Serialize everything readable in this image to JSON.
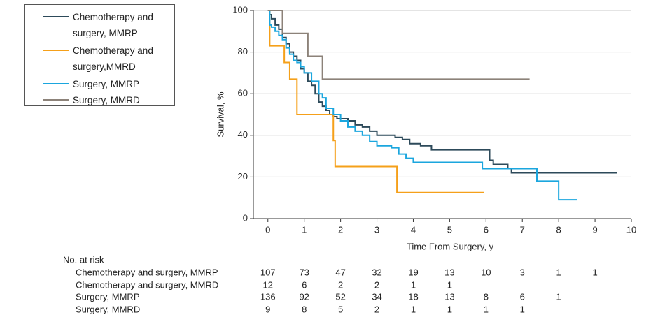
{
  "chart_data": {
    "type": "line",
    "step": true,
    "xlabel": "Time From Surgery, y",
    "ylabel": "Survival, %",
    "xlim": [
      -0.4,
      10
    ],
    "xticks": [
      0,
      1,
      2,
      3,
      4,
      5,
      6,
      7,
      8,
      9,
      10
    ],
    "ylim": [
      0,
      100
    ],
    "yticks": [
      0,
      20,
      40,
      60,
      80,
      100
    ],
    "grid": true,
    "series": [
      {
        "name": "Chemotherapy and surgery, MMRP",
        "color": "#2d4a5a",
        "x": [
          0,
          0.05,
          0.1,
          0.2,
          0.3,
          0.4,
          0.5,
          0.6,
          0.7,
          0.8,
          0.9,
          1.0,
          1.1,
          1.2,
          1.3,
          1.4,
          1.5,
          1.6,
          1.7,
          1.8,
          1.9,
          2.0,
          2.2,
          2.4,
          2.6,
          2.8,
          3.0,
          3.2,
          3.5,
          3.7,
          3.9,
          4.2,
          4.5,
          5.0,
          6.1,
          6.2,
          6.6,
          6.7,
          7.0,
          9.6
        ],
        "values": [
          100,
          98,
          96,
          93,
          91,
          87,
          84,
          80,
          78,
          76,
          72,
          70,
          66,
          64,
          60,
          56,
          54,
          52,
          50,
          49,
          48,
          48,
          47,
          45,
          44,
          42,
          40,
          40,
          39,
          38,
          36,
          35,
          33,
          33,
          28,
          26,
          24,
          22,
          22,
          22
        ]
      },
      {
        "name": "Chemotherapy and surgery,MMRD",
        "color": "#f5a01a",
        "x": [
          0,
          0.05,
          0.45,
          0.6,
          0.8,
          1.8,
          1.85,
          3.55,
          5.95
        ],
        "values": [
          100,
          83,
          75,
          67,
          50,
          37.5,
          25,
          12.5,
          12.5
        ]
      },
      {
        "name": "Surgery, MMRP",
        "color": "#1ba6de",
        "x": [
          0,
          0.05,
          0.1,
          0.2,
          0.3,
          0.4,
          0.5,
          0.6,
          0.7,
          0.8,
          0.9,
          1.0,
          1.2,
          1.4,
          1.5,
          1.6,
          1.8,
          2.0,
          2.2,
          2.4,
          2.6,
          2.8,
          3.0,
          3.4,
          3.6,
          3.8,
          4.0,
          4.5,
          5.0,
          5.9,
          7.4,
          7.8,
          8.0,
          8.5
        ],
        "values": [
          100,
          93,
          92,
          90,
          88,
          86,
          82,
          79,
          76,
          75,
          73,
          70,
          66,
          60,
          58,
          53,
          50,
          47,
          44,
          42,
          40,
          37,
          35,
          34,
          31,
          29,
          27,
          27,
          27,
          24,
          18,
          18,
          9,
          9
        ]
      },
      {
        "name": "Surgery, MMRD",
        "color": "#8c8279",
        "x": [
          0,
          0.4,
          1.1,
          1.5,
          7.2
        ],
        "values": [
          100,
          89,
          78,
          67,
          67
        ]
      }
    ],
    "risk_table": {
      "title": "No. at risk",
      "rows": [
        {
          "label": "Chemotherapy and surgery, MMRP",
          "counts": [
            107,
            73,
            47,
            32,
            19,
            13,
            10,
            3,
            1,
            1
          ]
        },
        {
          "label": "Chemotherapy and surgery, MMRD",
          "counts": [
            12,
            6,
            2,
            2,
            1,
            1,
            null,
            null,
            null,
            null
          ]
        },
        {
          "label": "Surgery, MMRP",
          "counts": [
            136,
            92,
            52,
            34,
            18,
            13,
            8,
            6,
            1,
            null
          ]
        },
        {
          "label": "Surgery, MMRD",
          "counts": [
            9,
            8,
            5,
            2,
            1,
            1,
            1,
            1,
            null,
            null
          ]
        }
      ]
    }
  }
}
